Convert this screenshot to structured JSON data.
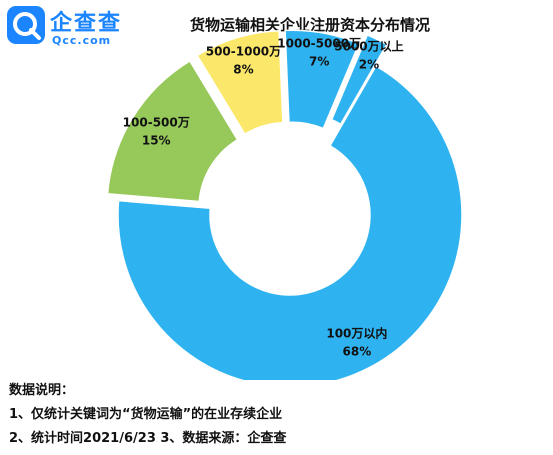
{
  "header": {
    "logo_name": "企查查",
    "logo_domain": "Qcc.com",
    "logo_icon": "qcc-logo-icon",
    "title": "货物运输相关企业注册资本分布情况"
  },
  "chart_data": {
    "type": "pie",
    "title": "货物运输相关企业注册资本分布情况",
    "donut": true,
    "exploded": true,
    "slices": [
      {
        "label": "100万以内",
        "value": 68,
        "value_label": "68%",
        "color": "#2fb3f0"
      },
      {
        "label": "100-500万",
        "value": 15,
        "value_label": "15%",
        "color": "#96c85a"
      },
      {
        "label": "500-1000万",
        "value": 8,
        "value_label": "8%",
        "color": "#fbe86a"
      },
      {
        "label": "1000-5000万",
        "value": 7,
        "value_label": "7%",
        "color": "#2fb3f0"
      },
      {
        "label": "5000万以上",
        "value": 2,
        "value_label": "2%",
        "color": "#2fb3f0"
      }
    ]
  },
  "notes": {
    "heading": "数据说明：",
    "line1": "1、仅统计关键词为“货物运输”的在业存续企业",
    "line2": "2、统计时间2021/6/23   3、数据来源：企查查"
  }
}
